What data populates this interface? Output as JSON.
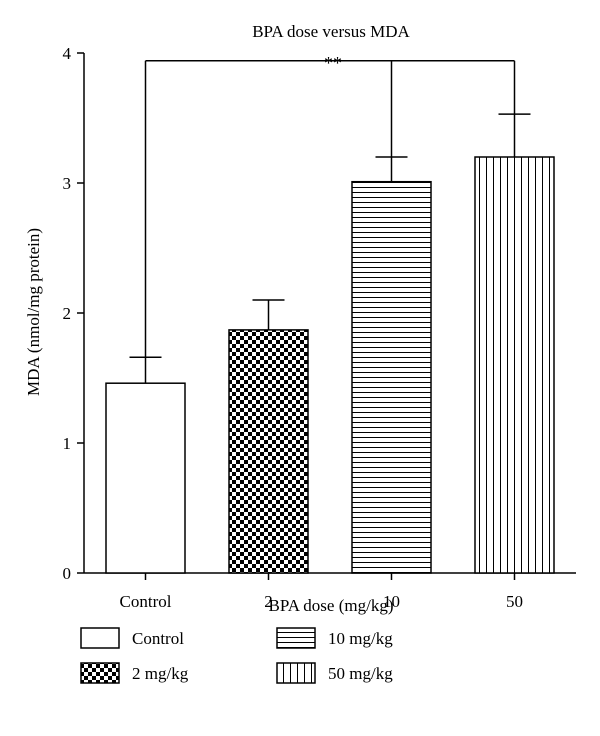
{
  "chart_data": {
    "type": "bar",
    "title": "BPA dose versus MDA",
    "xlabel": "BPA dose (mg/kg)",
    "ylabel": "MDA (nmol/mg protein)",
    "categories": [
      "Control",
      "2",
      "10",
      "50"
    ],
    "values": [
      1.46,
      1.87,
      3.01,
      3.2
    ],
    "errors": [
      0.2,
      0.23,
      0.19,
      0.33
    ],
    "ylim": [
      0,
      4
    ],
    "yticks": [
      "0",
      "1",
      "2",
      "3",
      "4"
    ],
    "patterns": [
      "none",
      "checker",
      "horizontal",
      "vertical"
    ],
    "significance": {
      "label": "**",
      "from": "Control",
      "to": [
        "10",
        "50"
      ],
      "y": 3.94
    },
    "legend": {
      "placement": "bottom",
      "entries": [
        {
          "label": "Control",
          "pattern": "none"
        },
        {
          "label": "10 mg/kg",
          "pattern": "horizontal"
        },
        {
          "label": "2 mg/kg",
          "pattern": "checker"
        },
        {
          "label": "50 mg/kg",
          "pattern": "vertical"
        }
      ]
    },
    "grid": false
  }
}
